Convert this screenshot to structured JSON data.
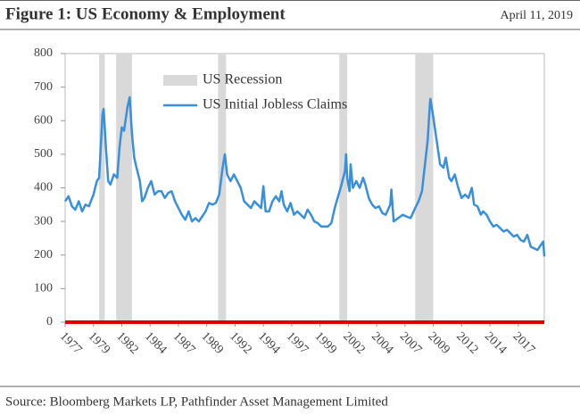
{
  "chart_data": {
    "type": "line",
    "title": "Figure 1: US Economy & Employment",
    "date": "April 11, 2019",
    "source": "Source: Bloomberg Markets LP, Pathfinder Asset Management Limited",
    "xlim": [
      1977,
      2019.3
    ],
    "xticks": [
      {
        "value": 1977,
        "label": "1977"
      },
      {
        "value": 1979.5,
        "label": "1979"
      },
      {
        "value": 1982,
        "label": "1982"
      },
      {
        "value": 1984.5,
        "label": "1984"
      },
      {
        "value": 1987,
        "label": "1987"
      },
      {
        "value": 1989.5,
        "label": "1989"
      },
      {
        "value": 1992,
        "label": "1992"
      },
      {
        "value": 1994.5,
        "label": "1994"
      },
      {
        "value": 1997,
        "label": "1997"
      },
      {
        "value": 1999.5,
        "label": "1999"
      },
      {
        "value": 2002,
        "label": "2002"
      },
      {
        "value": 2004.5,
        "label": "2004"
      },
      {
        "value": 2007,
        "label": "2007"
      },
      {
        "value": 2009.5,
        "label": "2009"
      },
      {
        "value": 2012,
        "label": "2012"
      },
      {
        "value": 2014.5,
        "label": "2014"
      },
      {
        "value": 2017,
        "label": "2017"
      }
    ],
    "ylim": [
      0,
      800
    ],
    "yticks": [
      0,
      100,
      200,
      300,
      400,
      500,
      600,
      700,
      800
    ],
    "grid": false,
    "axis_color": "#e00000",
    "series": [
      {
        "name": "US Recession",
        "color": "#d9d9d9",
        "kind": "band",
        "ranges": [
          [
            1980.0,
            1980.5
          ],
          [
            1981.5,
            1982.9
          ],
          [
            1990.5,
            1991.2
          ],
          [
            2001.2,
            2001.9
          ],
          [
            2007.9,
            2009.5
          ]
        ]
      },
      {
        "name": "US Initial Jobless Claims",
        "color": "#3a8fdc",
        "kind": "line",
        "x": [
          1977.0,
          1977.3,
          1977.6,
          1977.9,
          1978.2,
          1978.5,
          1978.8,
          1979.1,
          1979.5,
          1979.8,
          1980.0,
          1980.3,
          1980.4,
          1980.6,
          1980.8,
          1981.0,
          1981.3,
          1981.6,
          1981.8,
          1982.0,
          1982.2,
          1982.5,
          1982.7,
          1982.9,
          1983.1,
          1983.3,
          1983.6,
          1983.8,
          1984.0,
          1984.3,
          1984.6,
          1984.9,
          1985.2,
          1985.5,
          1985.8,
          1986.1,
          1986.4,
          1986.7,
          1987.0,
          1987.3,
          1987.6,
          1987.9,
          1988.2,
          1988.5,
          1988.8,
          1989.1,
          1989.4,
          1989.7,
          1990.0,
          1990.3,
          1990.6,
          1990.9,
          1991.1,
          1991.3,
          1991.6,
          1991.9,
          1992.2,
          1992.5,
          1992.8,
          1993.1,
          1993.4,
          1993.7,
          1994.0,
          1994.3,
          1994.5,
          1994.7,
          1995.0,
          1995.3,
          1995.6,
          1995.9,
          1996.1,
          1996.3,
          1996.6,
          1996.9,
          1997.2,
          1997.5,
          1997.8,
          1998.1,
          1998.4,
          1998.7,
          1999.0,
          1999.3,
          1999.6,
          1999.9,
          2000.2,
          2000.5,
          2000.8,
          2001.1,
          2001.4,
          2001.7,
          2001.8,
          2001.9,
          2002.1,
          2002.2,
          2002.4,
          2002.7,
          2003.0,
          2003.3,
          2003.5,
          2003.8,
          2004.1,
          2004.4,
          2004.7,
          2005.0,
          2005.3,
          2005.7,
          2005.8,
          2006.0,
          2006.4,
          2006.8,
          2007.1,
          2007.5,
          2007.9,
          2008.2,
          2008.5,
          2008.8,
          2009.0,
          2009.2,
          2009.25,
          2009.5,
          2009.8,
          2010.1,
          2010.4,
          2010.6,
          2010.9,
          2011.1,
          2011.4,
          2011.7,
          2012.0,
          2012.3,
          2012.6,
          2012.9,
          2013.1,
          2013.4,
          2013.7,
          2013.9,
          2014.2,
          2014.5,
          2014.8,
          2015.1,
          2015.4,
          2015.7,
          2016.0,
          2016.3,
          2016.6,
          2016.9,
          2017.2,
          2017.5,
          2017.8,
          2018.1,
          2018.4,
          2018.7,
          2019.0,
          2019.2,
          2019.3
        ],
        "values": [
          360,
          375,
          345,
          335,
          360,
          330,
          350,
          345,
          380,
          420,
          430,
          620,
          635,
          520,
          420,
          410,
          440,
          430,
          520,
          580,
          570,
          640,
          670,
          560,
          490,
          460,
          420,
          360,
          370,
          400,
          420,
          380,
          390,
          390,
          370,
          385,
          390,
          360,
          340,
          320,
          305,
          330,
          300,
          310,
          300,
          315,
          330,
          355,
          350,
          355,
          380,
          460,
          500,
          440,
          420,
          440,
          420,
          400,
          360,
          350,
          340,
          360,
          350,
          340,
          405,
          330,
          330,
          360,
          375,
          360,
          390,
          350,
          330,
          355,
          320,
          330,
          320,
          310,
          335,
          320,
          300,
          295,
          285,
          285,
          285,
          295,
          340,
          375,
          410,
          450,
          500,
          430,
          390,
          470,
          400,
          420,
          400,
          430,
          410,
          370,
          350,
          340,
          345,
          325,
          320,
          350,
          395,
          300,
          310,
          320,
          315,
          310,
          340,
          360,
          390,
          480,
          540,
          650,
          665,
          610,
          540,
          470,
          460,
          490,
          430,
          420,
          440,
          400,
          370,
          380,
          370,
          400,
          350,
          345,
          320,
          330,
          320,
          300,
          285,
          290,
          280,
          270,
          275,
          265,
          255,
          260,
          245,
          240,
          260,
          225,
          220,
          215,
          230,
          240,
          196
        ]
      }
    ]
  }
}
